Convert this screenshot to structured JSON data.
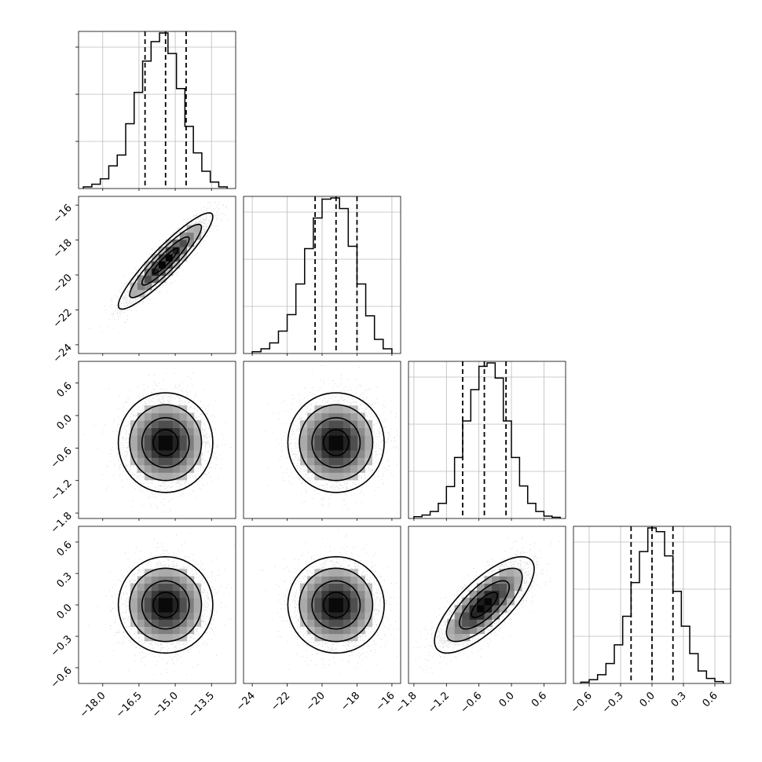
{
  "figure": {
    "type": "corner_plot",
    "parameter_count": 4,
    "grid": true,
    "colors": {
      "line": "#000000",
      "grid": "#bbbbbb",
      "samples": "#9a9a9a",
      "density_dark": "#000000",
      "density_light": "#f2f2f2"
    }
  },
  "chart_data": [
    {
      "panel": "hist-0",
      "type": "histogram",
      "param_index": 0,
      "xlim": [
        -19.0,
        -12.5
      ],
      "bin_edges": [
        -18.8,
        -18.45,
        -18.1,
        -17.75,
        -17.4,
        -17.05,
        -16.7,
        -16.35,
        -16.0,
        -15.65,
        -15.3,
        -14.95,
        -14.6,
        -14.25,
        -13.9,
        -13.55,
        -13.2,
        -12.85
      ],
      "counts": [
        3,
        8,
        18,
        42,
        62,
        120,
        178,
        236,
        272,
        288,
        250,
        185,
        115,
        66,
        32,
        12,
        3
      ],
      "quantiles": [
        -16.25,
        -15.4,
        -14.55
      ]
    },
    {
      "panel": "hist-1",
      "type": "histogram",
      "param_index": 1,
      "xlim": [
        -24.5,
        -15.5
      ],
      "bin_edges": [
        -24.0,
        -23.5,
        -23.0,
        -22.5,
        -22.0,
        -21.5,
        -21.0,
        -20.5,
        -20.0,
        -19.5,
        -19.0,
        -18.5,
        -18.0,
        -17.5,
        -17.0,
        -16.5,
        -16.0
      ],
      "counts": [
        3,
        8,
        18,
        38,
        66,
        118,
        178,
        230,
        262,
        264,
        246,
        182,
        118,
        64,
        24,
        8
      ],
      "quantiles": [
        -20.4,
        -19.2,
        -18.0
      ]
    },
    {
      "panel": "hist-2",
      "type": "histogram",
      "param_index": 2,
      "xlim": [
        -1.9,
        1.0
      ],
      "bin_edges": [
        -1.8,
        -1.65,
        -1.5,
        -1.35,
        -1.2,
        -1.05,
        -0.9,
        -0.75,
        -0.6,
        -0.45,
        -0.3,
        -0.15,
        0.0,
        0.15,
        0.3,
        0.45,
        0.6,
        0.75,
        0.9
      ],
      "counts": [
        3,
        6,
        12,
        26,
        55,
        105,
        168,
        222,
        262,
        268,
        242,
        168,
        105,
        56,
        26,
        12,
        4,
        2
      ],
      "quantiles": [
        -0.9,
        -0.5,
        -0.1
      ]
    },
    {
      "panel": "hist-3",
      "type": "histogram",
      "param_index": 3,
      "xlim": [
        -0.75,
        0.75
      ],
      "bin_edges": [
        -0.68,
        -0.6,
        -0.52,
        -0.44,
        -0.36,
        -0.28,
        -0.2,
        -0.12,
        -0.04,
        0.04,
        0.12,
        0.2,
        0.28,
        0.36,
        0.44,
        0.52,
        0.6,
        0.68
      ],
      "counts": [
        2,
        6,
        14,
        32,
        62,
        108,
        162,
        212,
        250,
        244,
        205,
        148,
        92,
        48,
        20,
        8,
        3
      ],
      "quantiles": [
        -0.2,
        0.0,
        0.2
      ]
    },
    {
      "panel": "pair-1-0",
      "type": "scatter_density",
      "x_param": 0,
      "y_param": 1,
      "mean": [
        -15.4,
        -19.2
      ],
      "sigma": [
        0.85,
        1.2
      ],
      "rho": 0.92,
      "n_samples": 4000,
      "xlim": [
        -19.0,
        -12.5
      ],
      "ylim": [
        -24.5,
        -15.5
      ]
    },
    {
      "panel": "pair-2-0",
      "type": "scatter_density",
      "x_param": 0,
      "y_param": 2,
      "mean": [
        -15.4,
        -0.5
      ],
      "sigma": [
        0.85,
        0.4
      ],
      "rho": 0.0,
      "n_samples": 4000,
      "xlim": [
        -19.0,
        -12.5
      ],
      "ylim": [
        -1.9,
        1.0
      ]
    },
    {
      "panel": "pair-2-1",
      "type": "scatter_density",
      "x_param": 1,
      "y_param": 2,
      "mean": [
        -19.2,
        -0.5
      ],
      "sigma": [
        1.2,
        0.4
      ],
      "rho": 0.0,
      "n_samples": 4000,
      "xlim": [
        -24.5,
        -15.5
      ],
      "ylim": [
        -1.9,
        1.0
      ]
    },
    {
      "panel": "pair-3-0",
      "type": "scatter_density",
      "x_param": 0,
      "y_param": 3,
      "mean": [
        -15.4,
        0.0
      ],
      "sigma": [
        0.85,
        0.2
      ],
      "rho": 0.0,
      "n_samples": 4000,
      "xlim": [
        -19.0,
        -12.5
      ],
      "ylim": [
        -0.75,
        0.75
      ]
    },
    {
      "panel": "pair-3-1",
      "type": "scatter_density",
      "x_param": 1,
      "y_param": 3,
      "mean": [
        -19.2,
        0.0
      ],
      "sigma": [
        1.2,
        0.2
      ],
      "rho": 0.0,
      "n_samples": 4000,
      "xlim": [
        -24.5,
        -15.5
      ],
      "ylim": [
        -0.75,
        0.75
      ]
    },
    {
      "panel": "pair-3-2",
      "type": "scatter_density",
      "x_param": 2,
      "y_param": 3,
      "mean": [
        -0.5,
        0.0
      ],
      "sigma": [
        0.4,
        0.2
      ],
      "rho": 0.75,
      "n_samples": 4000,
      "xlim": [
        -1.9,
        1.0
      ],
      "ylim": [
        -0.75,
        0.75
      ]
    }
  ],
  "axes": {
    "x_ticks": [
      {
        "values": [
          -18.0,
          -16.5,
          -15.0,
          -13.5
        ],
        "labels": [
          "−18.0",
          "−16.5",
          "−15.0",
          "−13.5"
        ]
      },
      {
        "values": [
          -24,
          -22,
          -20,
          -18,
          -16
        ],
        "labels": [
          "−24",
          "−22",
          "−20",
          "−18",
          "−16"
        ]
      },
      {
        "values": [
          -1.8,
          -1.2,
          -0.6,
          0.0,
          0.6
        ],
        "labels": [
          "−1.8",
          "−1.2",
          "−0.6",
          "0.0",
          "0.6"
        ]
      },
      {
        "values": [
          -0.6,
          -0.3,
          0.0,
          0.3,
          0.6
        ],
        "labels": [
          "−0.6",
          "−0.3",
          "0.0",
          "0.3",
          "0.6"
        ]
      }
    ],
    "y_ticks": [
      null,
      {
        "values": [
          -24,
          -22,
          -20,
          -18,
          -16
        ],
        "labels": [
          "−24",
          "−22",
          "−20",
          "−18",
          "−16"
        ]
      },
      {
        "values": [
          -1.8,
          -1.2,
          -0.6,
          0.0,
          0.6
        ],
        "labels": [
          "−1.8",
          "−1.2",
          "−0.6",
          "0.0",
          "0.6"
        ]
      },
      {
        "values": [
          -0.6,
          -0.3,
          0.0,
          0.3,
          0.6
        ],
        "labels": [
          "−0.6",
          "−0.3",
          "0.0",
          "0.3",
          "0.6"
        ]
      }
    ]
  }
}
